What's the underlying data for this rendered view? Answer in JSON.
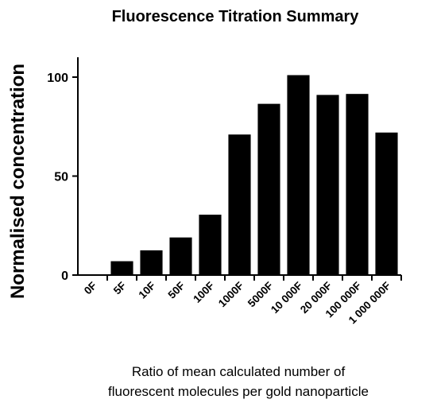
{
  "chart_data": {
    "type": "bar",
    "title": "Fluorescence Titration Summary",
    "ylabel": "Normalised concentration",
    "xlabel_lines": [
      "Ratio of mean calculated number of",
      "fluorescent molecules per gold nanoparticle"
    ],
    "categories": [
      "0F",
      "5F",
      "10F",
      "50F",
      "100F",
      "1000F",
      "5000F",
      "10 000F",
      "20 000F",
      "100 000F",
      "1 000 000F"
    ],
    "values": [
      0,
      7,
      12.5,
      19,
      30.5,
      71,
      86.5,
      101,
      91,
      91.5,
      72
    ],
    "ylim": [
      0,
      110
    ],
    "yticks": [
      0,
      50,
      100
    ],
    "grid": false,
    "bar_color": "#000000"
  }
}
